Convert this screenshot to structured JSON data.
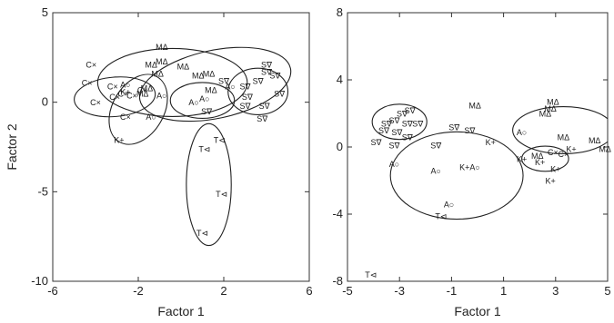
{
  "chart_data": [
    {
      "type": "scatter",
      "title": "",
      "xlabel": "Factor 1",
      "ylabel": "Factor 2",
      "xlim": [
        -6,
        6
      ],
      "ylim": [
        -10,
        5
      ],
      "xticks": [
        "-6",
        "-2",
        "2",
        "6"
      ],
      "yticks": [
        "5",
        "0",
        "-5",
        "-10"
      ],
      "grid": false,
      "series": [
        {
          "name": "C",
          "symbol": "×",
          "points": [
            [
              -4.2,
              2.1
            ],
            [
              -4.4,
              1.1
            ],
            [
              -4.0,
              0.0
            ],
            [
              -3.1,
              0.3
            ],
            [
              -3.2,
              0.9
            ],
            [
              -2.7,
              0.5
            ],
            [
              -2.3,
              0.4
            ],
            [
              -2.6,
              -0.8
            ],
            [
              -1.8,
              0.7
            ]
          ]
        },
        {
          "name": "M",
          "symbol": "Δ",
          "points": [
            [
              -0.9,
              3.1
            ],
            [
              -1.4,
              2.1
            ],
            [
              -0.9,
              2.3
            ],
            [
              -1.1,
              1.6
            ],
            [
              0.1,
              2.0
            ],
            [
              0.8,
              1.5
            ],
            [
              1.3,
              1.6
            ],
            [
              1.4,
              0.7
            ],
            [
              -1.6,
              0.8
            ],
            [
              -1.8,
              0.5
            ]
          ]
        },
        {
          "name": "A",
          "symbol": "○",
          "points": [
            [
              -2.6,
              1.0
            ],
            [
              -0.9,
              0.4
            ],
            [
              -1.4,
              -0.8
            ],
            [
              0.6,
              0.0
            ],
            [
              1.1,
              0.2
            ],
            [
              2.3,
              0.9
            ]
          ]
        },
        {
          "name": "K",
          "symbol": "+",
          "points": [
            [
              -2.9,
              -2.1
            ],
            [
              -2.6,
              0.6
            ]
          ]
        },
        {
          "name": "T",
          "symbol": "⊲",
          "points": [
            [
              1.1,
              -2.6
            ],
            [
              1.8,
              -2.1
            ],
            [
              1.9,
              -5.1
            ],
            [
              1.0,
              -7.3
            ]
          ]
        },
        {
          "name": "S",
          "symbol": "∇",
          "points": [
            [
              1.2,
              -0.5
            ],
            [
              2.0,
              1.2
            ],
            [
              3.0,
              0.9
            ],
            [
              3.6,
              1.2
            ],
            [
              3.1,
              0.3
            ],
            [
              4.0,
              1.7
            ],
            [
              4.4,
              1.5
            ],
            [
              4.6,
              0.5
            ],
            [
              3.8,
              -0.9
            ],
            [
              3.9,
              -0.2
            ],
            [
              3.0,
              -0.2
            ],
            [
              4.0,
              2.1
            ]
          ]
        }
      ],
      "ellipses": [
        {
          "cx": -3.1,
          "cy": 0.3,
          "rx": 1.9,
          "ry": 1.1,
          "angle": 5
        },
        {
          "cx": -2.0,
          "cy": -0.4,
          "rx": 1.2,
          "ry": 2.1,
          "angle": -30
        },
        {
          "cx": -0.4,
          "cy": 1.1,
          "rx": 3.5,
          "ry": 1.9,
          "angle": 0
        },
        {
          "cx": 1.6,
          "cy": 1.0,
          "rx": 3.6,
          "ry": 1.9,
          "angle": 12
        },
        {
          "cx": 1.0,
          "cy": 0.1,
          "rx": 1.5,
          "ry": 1.0,
          "angle": 0
        },
        {
          "cx": 3.6,
          "cy": 0.6,
          "rx": 1.4,
          "ry": 1.3,
          "angle": 0
        },
        {
          "cx": 1.3,
          "cy": -4.6,
          "rx": 1.05,
          "ry": 3.4,
          "angle": 0
        }
      ]
    },
    {
      "type": "scatter",
      "title": "",
      "xlabel": "Factor 1",
      "ylabel": "",
      "xlim": [
        -5,
        5
      ],
      "ylim": [
        -8,
        8
      ],
      "xticks": [
        "-5",
        "-3",
        "-1",
        "1",
        "3",
        "5"
      ],
      "yticks": [
        "8",
        "4",
        "0",
        "-4",
        "-8"
      ],
      "grid": false,
      "series": [
        {
          "name": "S",
          "symbol": "∇",
          "points": [
            [
              -3.5,
              1.4
            ],
            [
              -3.2,
              1.6
            ],
            [
              -2.9,
              2.0
            ],
            [
              -2.6,
              2.2
            ],
            [
              -3.6,
              1.0
            ],
            [
              -3.1,
              0.9
            ],
            [
              -2.7,
              1.4
            ],
            [
              -2.3,
              1.4
            ],
            [
              -2.7,
              0.6
            ],
            [
              -3.9,
              0.3
            ],
            [
              -3.2,
              0.1
            ],
            [
              -1.6,
              0.1
            ],
            [
              -0.9,
              1.2
            ],
            [
              -0.3,
              1.0
            ]
          ]
        },
        {
          "name": "M",
          "symbol": "Δ",
          "points": [
            [
              -0.1,
              2.5
            ],
            [
              2.8,
              2.3
            ],
            [
              2.9,
              2.7
            ],
            [
              2.6,
              2.0
            ],
            [
              3.3,
              0.6
            ],
            [
              4.5,
              0.4
            ],
            [
              4.9,
              -0.1
            ],
            [
              2.3,
              -0.5
            ]
          ]
        },
        {
          "name": "A",
          "symbol": "○",
          "points": [
            [
              -3.2,
              -1.0
            ],
            [
              -1.6,
              -1.4
            ],
            [
              -0.1,
              -1.2
            ],
            [
              -1.1,
              -3.4
            ],
            [
              1.7,
              0.9
            ]
          ]
        },
        {
          "name": "K",
          "symbol": "+",
          "points": [
            [
              0.5,
              0.3
            ],
            [
              -0.5,
              -1.2
            ],
            [
              1.7,
              -0.7
            ],
            [
              2.4,
              -0.9
            ],
            [
              3.0,
              -1.3
            ],
            [
              2.8,
              -2.0
            ],
            [
              3.6,
              -0.1
            ]
          ]
        },
        {
          "name": "T",
          "symbol": "⊲",
          "points": [
            [
              -1.4,
              -4.1
            ],
            [
              -4.1,
              -7.6
            ]
          ]
        },
        {
          "name": "C",
          "symbol": "×",
          "points": [
            [
              2.9,
              -0.3
            ],
            [
              3.3,
              -0.4
            ]
          ]
        }
      ],
      "ellipses": [
        {
          "cx": -3.0,
          "cy": 1.5,
          "rx": 1.05,
          "ry": 1.05,
          "angle": 0
        },
        {
          "cx": -0.8,
          "cy": -1.7,
          "rx": 2.55,
          "ry": 2.6,
          "angle": 0
        },
        {
          "cx": 3.3,
          "cy": 1.0,
          "rx": 1.95,
          "ry": 1.4,
          "angle": 0
        },
        {
          "cx": 2.6,
          "cy": -0.7,
          "rx": 0.9,
          "ry": 0.75,
          "angle": 0
        }
      ]
    }
  ]
}
